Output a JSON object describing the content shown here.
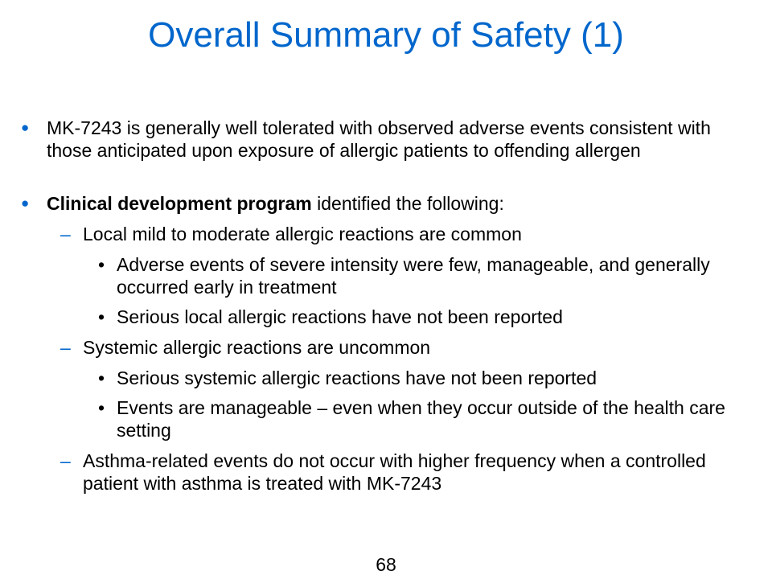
{
  "title": "Overall Summary of Safety (1)",
  "bullets": {
    "b1": {
      "marker": "●",
      "text": "MK-7243 is generally well tolerated with observed adverse events consistent with those anticipated upon exposure of allergic patients to offending allergen"
    },
    "b2": {
      "marker": "●",
      "bold_text": "Clinical development program",
      "text": " identified the following:",
      "sub1": {
        "marker": "–",
        "text": "Local mild to moderate allergic reactions are common",
        "items": [
          {
            "marker": "•",
            "text": "Adverse events of severe intensity were few, manageable, and generally occurred early in treatment"
          },
          {
            "marker": "•",
            "text": "Serious local allergic reactions have not been reported"
          }
        ]
      },
      "sub2": {
        "marker": "–",
        "text": "Systemic allergic reactions are uncommon",
        "items": [
          {
            "marker": "•",
            "text": "Serious systemic allergic reactions have not been reported"
          },
          {
            "marker": "•",
            "text": "Events are manageable – even when they occur outside of the health care setting"
          }
        ]
      },
      "sub3": {
        "marker": "–",
        "text": "Asthma-related events do not occur with higher frequency when a controlled patient with asthma is treated with MK-7243"
      }
    }
  },
  "page_number": "68"
}
